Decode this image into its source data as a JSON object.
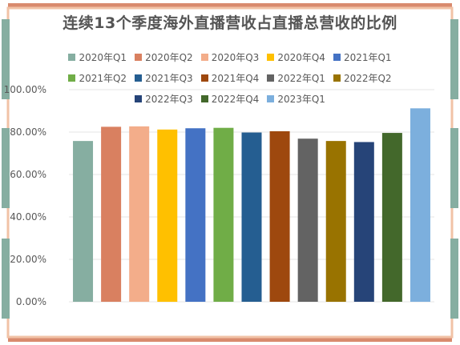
{
  "colors": {
    "border_salmon": "#d98b6e",
    "border_peach": "#f1c2a6",
    "border_teal": "#86aea1",
    "grid": "#e6e6e6",
    "axis_text": "#595959"
  },
  "chart_data": {
    "type": "bar",
    "title": "连续13个季度海外直播营收占直播总营收的比例",
    "categories": [
      "2020年Q1",
      "2020年Q2",
      "2020年Q3",
      "2020年Q4",
      "2021年Q1",
      "2021年Q2",
      "2021年Q3",
      "2021年Q4",
      "2022年Q1",
      "2022年Q2",
      "2022年Q3",
      "2022年Q4",
      "2023年Q1"
    ],
    "values": [
      75.8,
      82.5,
      82.7,
      81.2,
      81.8,
      82.0,
      79.8,
      80.4,
      76.9,
      75.8,
      75.3,
      79.6,
      91.2
    ],
    "bar_colors": [
      "#86aea1",
      "#d98060",
      "#f3ad8a",
      "#ffc000",
      "#4472c4",
      "#70ad47",
      "#255e91",
      "#9e480e",
      "#636363",
      "#997300",
      "#264478",
      "#43682b",
      "#7cafdd"
    ],
    "ylim": [
      0,
      100
    ],
    "yticks": [
      0,
      20,
      40,
      60,
      80,
      100
    ],
    "ytick_labels": [
      "0.00%",
      "20.00%",
      "40.00%",
      "60.00%",
      "80.00%",
      "100.00%"
    ],
    "grid": true,
    "legend_position": "top"
  }
}
